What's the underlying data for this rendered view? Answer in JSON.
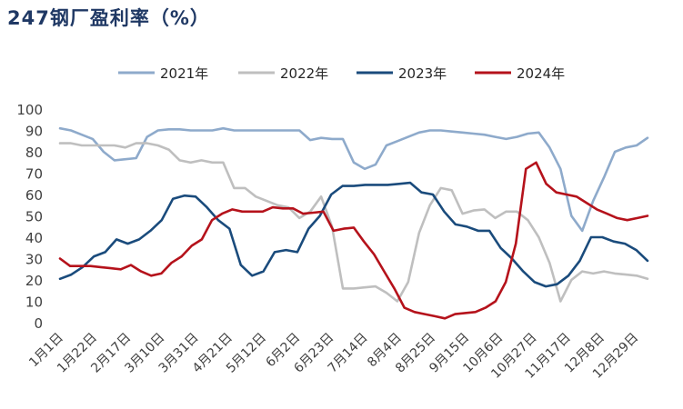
{
  "title": "247钢厂盈利率（%）",
  "chart_data": {
    "type": "line",
    "title": "247钢厂盈利率（%）",
    "xlabel": "",
    "ylabel": "",
    "ylim": [
      0,
      100
    ],
    "yticks": [
      0,
      10,
      20,
      30,
      40,
      50,
      60,
      70,
      80,
      90,
      100
    ],
    "grid": false,
    "legend": "top",
    "x_tick_labels": [
      "1月1日",
      "1月22日",
      "2月17日",
      "3月10日",
      "3月31日",
      "4月21日",
      "5月12日",
      "6月2日",
      "6月23日",
      "7月14日",
      "8月4日",
      "8月25日",
      "9月15日",
      "10月6日",
      "10月27日",
      "11月17日",
      "12月8日",
      "12月29日"
    ],
    "series": [
      {
        "name": "2021年",
        "color": "#8eaacb",
        "values": [
          91,
          90,
          88,
          86,
          80,
          76,
          76.5,
          77,
          87,
          90,
          90.5,
          90.5,
          90,
          90,
          90,
          91,
          90,
          90,
          90,
          90,
          90,
          90,
          90,
          85.5,
          86.5,
          86,
          86,
          75,
          72,
          74,
          83,
          85,
          87,
          89,
          90,
          90,
          89.5,
          89,
          88.5,
          88,
          87,
          86,
          87,
          88.5,
          89,
          82,
          72,
          50,
          43,
          57,
          68,
          80,
          82,
          83,
          86.5
        ]
      },
      {
        "name": "2022年",
        "color": "#bfbfbf",
        "values": [
          84,
          84,
          83,
          83,
          83,
          83,
          82,
          84,
          84,
          83,
          81,
          76,
          75,
          76,
          75,
          75,
          63,
          63,
          59,
          57,
          55,
          54,
          49,
          52,
          59,
          45,
          16,
          16,
          16.5,
          17,
          14,
          10,
          19,
          42,
          55,
          63,
          62,
          51,
          52.5,
          53,
          49,
          52,
          52,
          48,
          40,
          28,
          10,
          20,
          24,
          23,
          24,
          23,
          22.5,
          22,
          20.5
        ]
      },
      {
        "name": "2023年",
        "color": "#1a4b7c",
        "values": [
          20.5,
          22.5,
          26,
          31,
          33,
          39,
          37,
          39,
          43,
          48,
          58,
          59.5,
          59,
          54,
          48,
          44,
          27,
          22,
          24,
          33,
          34,
          33,
          44,
          50,
          60,
          64,
          64,
          64.5,
          64.5,
          64.5,
          65,
          65.5,
          61,
          60,
          52,
          46,
          45,
          43,
          43,
          35,
          30,
          24,
          19,
          17,
          18,
          22,
          29,
          40,
          40,
          38,
          37,
          34,
          29
        ]
      },
      {
        "name": "2024年",
        "color": "#b5121b",
        "values": [
          30,
          26.5,
          26.5,
          26.5,
          26,
          25.5,
          25,
          27,
          24,
          22,
          23,
          28,
          31,
          36,
          39,
          48,
          51,
          53,
          52,
          52,
          52,
          54,
          53.5,
          53.5,
          51,
          51.5,
          52,
          43,
          44,
          44.5,
          38,
          32,
          24,
          16,
          7,
          5,
          4,
          3,
          2,
          4,
          4.5,
          5,
          7,
          10,
          19,
          37,
          72,
          75,
          65,
          61,
          60,
          59,
          56,
          53,
          51,
          49,
          48,
          49,
          50
        ]
      }
    ]
  }
}
